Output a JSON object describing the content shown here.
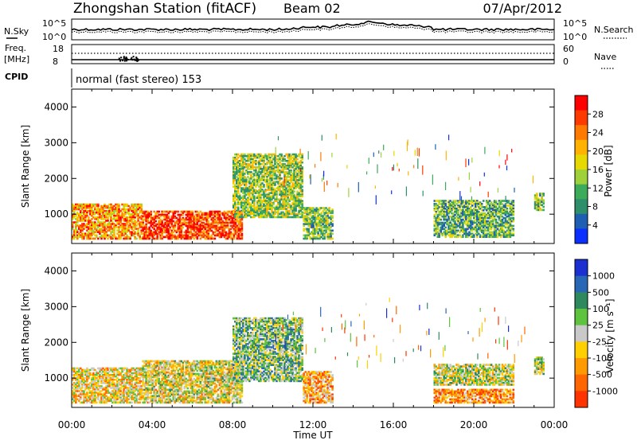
{
  "header": {
    "title": "Zhongshan Station (fitACF)",
    "beam": "Beam 02",
    "date": "07/Apr/2012"
  },
  "noise_panel": {
    "left_label": "N.Sky",
    "right_label": "N.Search",
    "tick_top": "10^5",
    "tick_bottom": "10^0"
  },
  "freq_panel": {
    "left_label_1": "Freq.",
    "left_label_2": "[MHz]",
    "right_label": "Nave",
    "left_ticks": [
      "18",
      "8"
    ],
    "right_ticks": [
      "60",
      "0"
    ]
  },
  "cpid": {
    "label": "CPID",
    "text": "normal (fast stereo) 153"
  },
  "chart_data": [
    {
      "type": "heatmap",
      "name": "power",
      "ylabel": "Slant Range [km]",
      "ylim": [
        180,
        4500
      ],
      "yticks": [
        "4000",
        "3000",
        "2000",
        "1000"
      ],
      "colorbar": {
        "title": "Power [dB]",
        "ticks": [
          "28",
          "24",
          "20",
          "16",
          "12",
          "8",
          "4"
        ],
        "colors": [
          "#ff0000",
          "#ff3a00",
          "#ff7a00",
          "#ffb300",
          "#e6d800",
          "#9fd23a",
          "#3cab5a",
          "#2f8f6a",
          "#1f5fb3",
          "#0b2fff"
        ]
      },
      "regions": [
        {
          "t0": 0.0,
          "t1": 3.5,
          "r0": 300,
          "r1": 1300,
          "level": 0.7
        },
        {
          "t0": 3.5,
          "t1": 8.5,
          "r0": 300,
          "r1": 1100,
          "level": 0.85
        },
        {
          "t0": 8.0,
          "t1": 11.5,
          "r0": 900,
          "r1": 2700,
          "level": 0.45
        },
        {
          "t0": 11.5,
          "t1": 13.0,
          "r0": 300,
          "r1": 1200,
          "level": 0.4
        },
        {
          "t0": 18.0,
          "t1": 22.0,
          "r0": 350,
          "r1": 1400,
          "level": 0.35
        },
        {
          "t0": 23.0,
          "t1": 23.5,
          "r0": 1100,
          "r1": 1600,
          "level": 0.4
        }
      ]
    },
    {
      "type": "heatmap",
      "name": "velocity",
      "ylabel": "Slant Range [km]",
      "xlabel": "Time UT",
      "ylim": [
        180,
        4500
      ],
      "yticks": [
        "4000",
        "3000",
        "2000",
        "1000"
      ],
      "colorbar": {
        "title": "Velocity [m s⁻¹]",
        "ticks": [
          "1000",
          "500",
          "100",
          "25",
          "-25",
          "-100",
          "-500",
          "-1000"
        ],
        "colors": [
          "#1c2fd1",
          "#2867b5",
          "#2e8a5e",
          "#5ec33e",
          "#c9c9c9",
          "#ffcf00",
          "#ff9a00",
          "#ff6600",
          "#ff3300"
        ]
      },
      "regions": [
        {
          "t0": 0.0,
          "t1": 3.5,
          "r0": 300,
          "r1": 1300,
          "level": 0.6
        },
        {
          "t0": 3.5,
          "t1": 8.5,
          "r0": 300,
          "r1": 1500,
          "level": 0.55
        },
        {
          "t0": 8.0,
          "t1": 11.5,
          "r0": 900,
          "r1": 2700,
          "level": 0.4
        },
        {
          "t0": 11.5,
          "t1": 13.0,
          "r0": 300,
          "r1": 1200,
          "level": 0.7
        },
        {
          "t0": 18.0,
          "t1": 22.0,
          "r0": 800,
          "r1": 1400,
          "level": 0.5
        },
        {
          "t0": 18.0,
          "t1": 22.0,
          "r0": 300,
          "r1": 700,
          "level": 0.75
        },
        {
          "t0": 23.0,
          "t1": 23.5,
          "r0": 1100,
          "r1": 1600,
          "level": 0.5
        }
      ]
    }
  ],
  "x_axis": {
    "label": "Time UT",
    "ticks": [
      "00:00",
      "04:00",
      "08:00",
      "12:00",
      "16:00",
      "20:00",
      "00:00"
    ],
    "range_hours": [
      0,
      24
    ]
  }
}
